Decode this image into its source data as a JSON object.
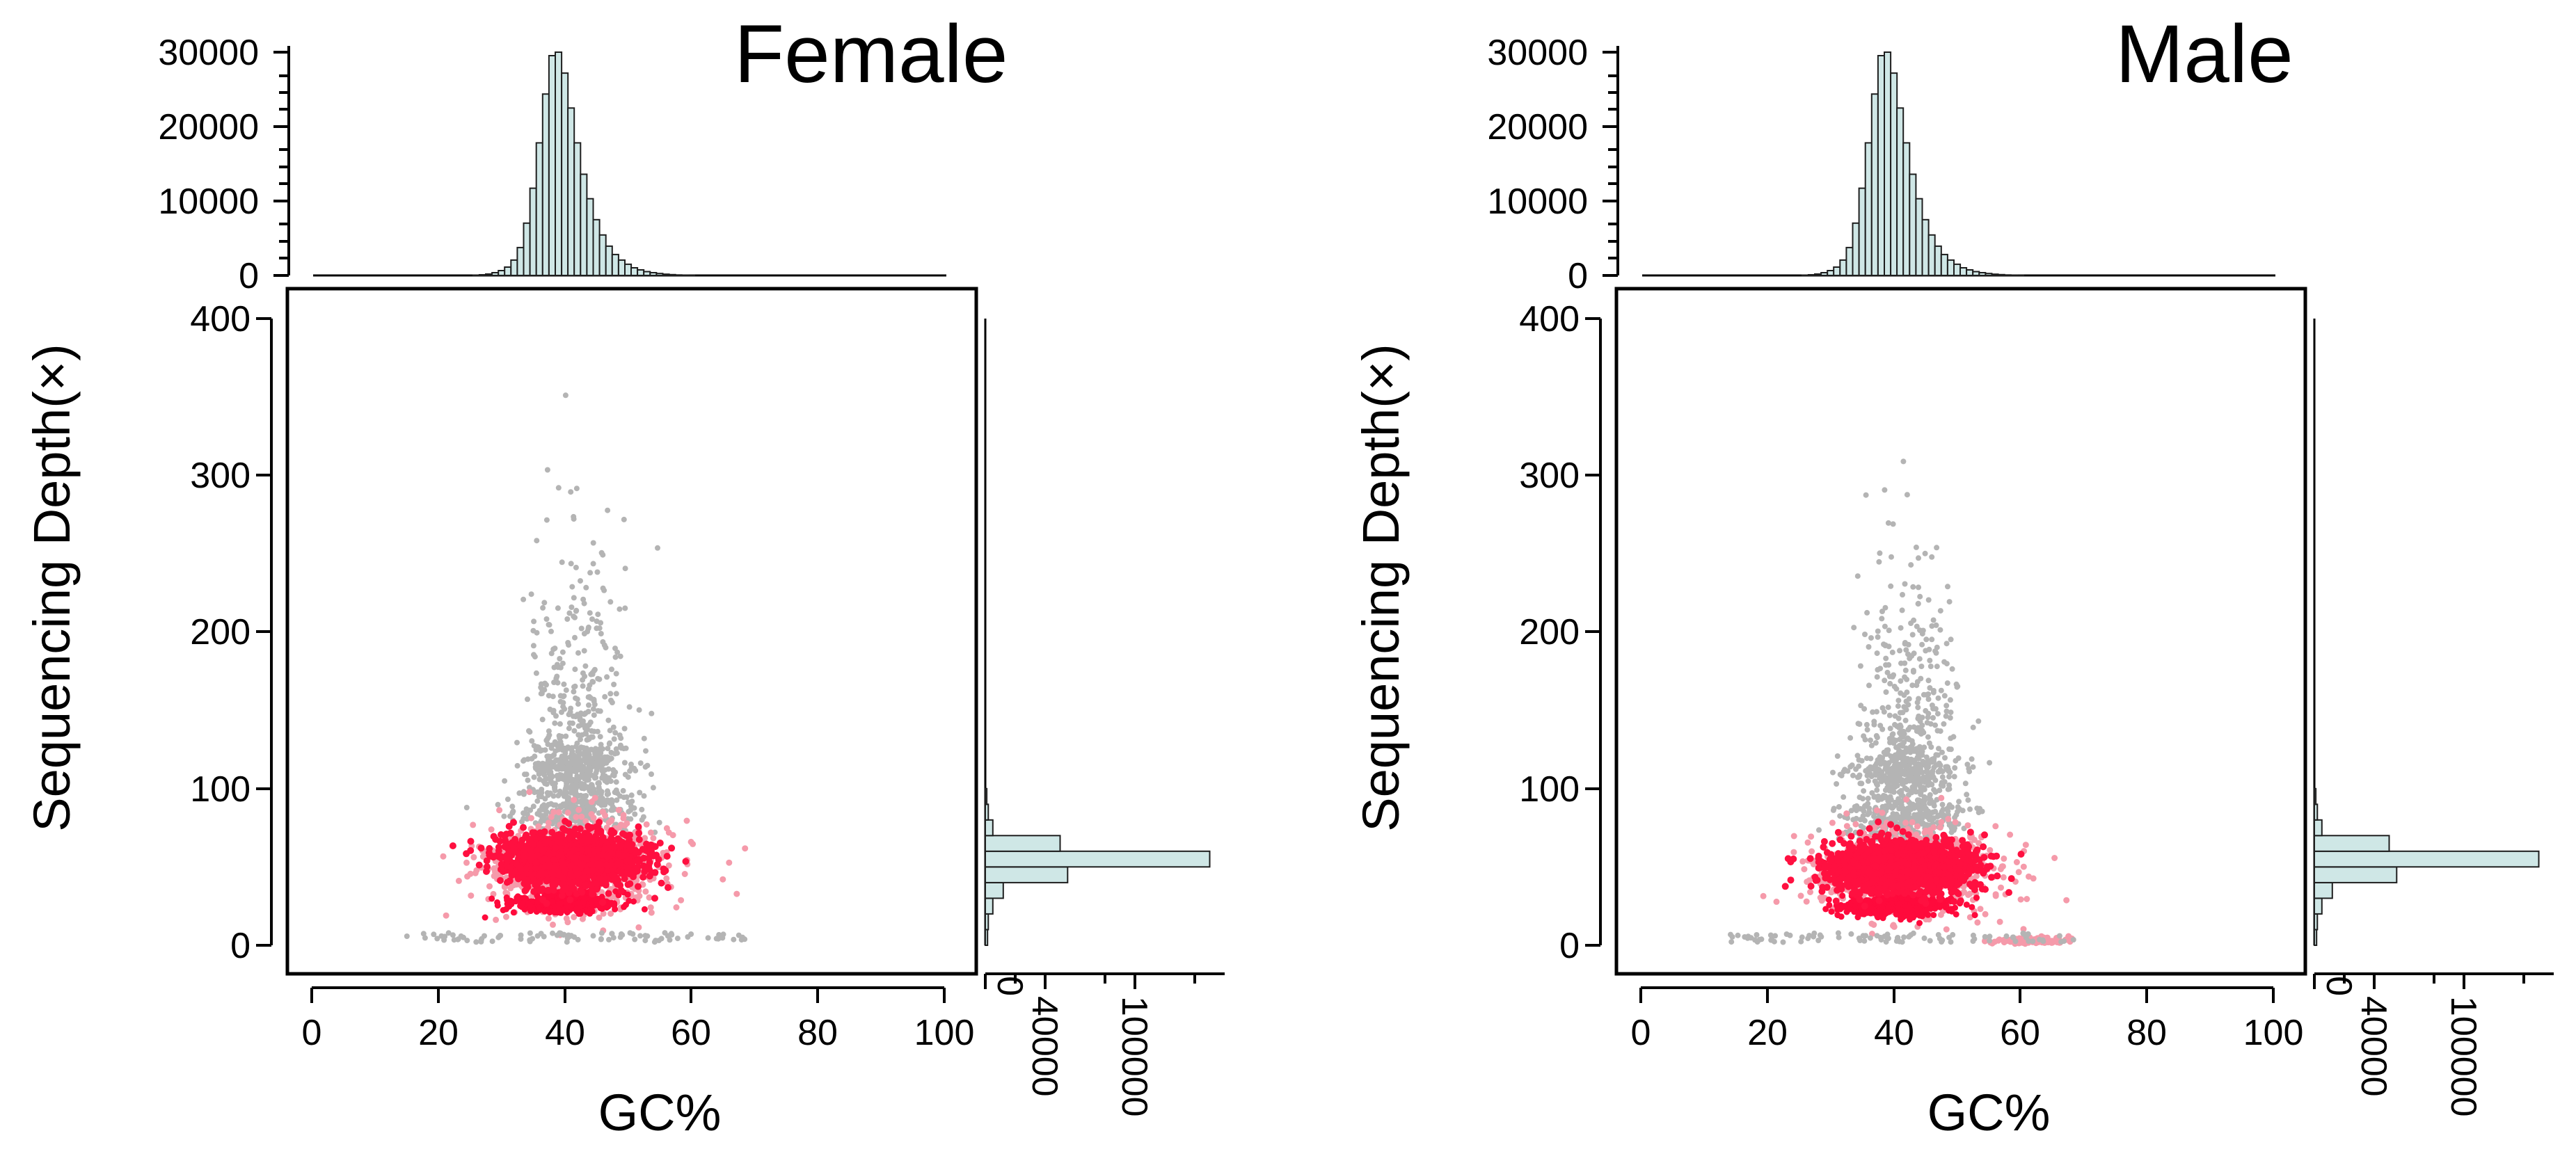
{
  "colors": {
    "histogram_fill": "#cfe7e6",
    "histogram_stroke": "#1e1e1e",
    "point_sparse": "#b4b4b4",
    "point_mid": "#f59aaa",
    "point_dense": "#ff0a3c",
    "point_core": "#ff1040"
  },
  "chart_data": [
    {
      "type": "scatter",
      "title": "Female",
      "xlabel": "GC%",
      "ylabel": "Sequencing   Depth(×)",
      "xlim": [
        0,
        100
      ],
      "ylim": [
        0,
        400
      ],
      "x_ticks": [
        "0",
        "20",
        "40",
        "60",
        "80",
        "100"
      ],
      "y_ticks": [
        "0",
        "100",
        "200",
        "300",
        "400"
      ],
      "grid": false,
      "density_clusters": [
        {
          "gc": 41,
          "depth": 55,
          "sd_gc": 5.5,
          "sd_depth": 8,
          "level": "core"
        },
        {
          "gc": 40,
          "depth": 27,
          "sd_gc": 4,
          "sd_depth": 3,
          "level": "dense"
        },
        {
          "gc": 42,
          "depth": 52,
          "sd_gc": 7,
          "sd_depth": 14,
          "level": "mid"
        },
        {
          "gc": 42,
          "depth": 85,
          "sd_gc": 5,
          "sd_depth": 8,
          "level": "sparse"
        },
        {
          "gc": 42,
          "depth": 115,
          "sd_gc": 4,
          "sd_depth": 8,
          "level": "sparse"
        },
        {
          "gc": 42,
          "depth": 200,
          "sd_gc": 4,
          "sd_depth": 80,
          "level": "sparse"
        }
      ],
      "top_histogram": {
        "x_centers": [
          26,
          27,
          28,
          29,
          30,
          31,
          32,
          33,
          34,
          35,
          36,
          37,
          38,
          39,
          40,
          41,
          42,
          43,
          44,
          45,
          46,
          47,
          48,
          49,
          50,
          51,
          52,
          53,
          54,
          55,
          56,
          57,
          58,
          59,
          60
        ],
        "counts": [
          50,
          100,
          200,
          400,
          700,
          1200,
          2200,
          4000,
          7500,
          12500,
          19000,
          26000,
          31500,
          32000,
          29000,
          24000,
          19000,
          14500,
          11000,
          8000,
          5800,
          4200,
          3000,
          2200,
          1600,
          1100,
          800,
          550,
          400,
          280,
          180,
          120,
          70,
          40,
          20
        ],
        "ylim": [
          0,
          32000
        ],
        "y_ticks": [
          "0",
          "10000",
          "20000",
          "30000"
        ]
      },
      "right_histogram": {
        "depth_centers": [
          5,
          15,
          25,
          35,
          45,
          55,
          65,
          75,
          85,
          95
        ],
        "counts": [
          1500,
          2000,
          5000,
          12000,
          55000,
          150000,
          50000,
          5000,
          2000,
          1000
        ],
        "xlim": [
          0,
          160000
        ],
        "x_ticks": [
          "0",
          "40000",
          "100000"
        ]
      }
    },
    {
      "type": "scatter",
      "title": "Male",
      "xlabel": "GC%",
      "ylabel": "Sequencing   Depth(×)",
      "xlim": [
        0,
        100
      ],
      "ylim": [
        0,
        400
      ],
      "x_ticks": [
        "0",
        "20",
        "40",
        "60",
        "80",
        "100"
      ],
      "y_ticks": [
        "0",
        "100",
        "200",
        "300",
        "400"
      ],
      "grid": false,
      "density_clusters": [
        {
          "gc": 41,
          "depth": 50,
          "sd_gc": 5.5,
          "sd_depth": 8,
          "level": "core"
        },
        {
          "gc": 40,
          "depth": 25,
          "sd_gc": 4,
          "sd_depth": 3,
          "level": "dense"
        },
        {
          "gc": 42,
          "depth": 48,
          "sd_gc": 7,
          "sd_depth": 14,
          "level": "mid"
        },
        {
          "gc": 42,
          "depth": 80,
          "sd_gc": 5,
          "sd_depth": 8,
          "level": "sparse"
        },
        {
          "gc": 42,
          "depth": 110,
          "sd_gc": 4,
          "sd_depth": 8,
          "level": "sparse"
        },
        {
          "gc": 42,
          "depth": 200,
          "sd_gc": 4,
          "sd_depth": 80,
          "level": "sparse"
        },
        {
          "gc": 62,
          "depth": 3,
          "sd_gc": 3,
          "sd_depth": 1,
          "level": "mid"
        }
      ],
      "top_histogram": {
        "x_centers": [
          26,
          27,
          28,
          29,
          30,
          31,
          32,
          33,
          34,
          35,
          36,
          37,
          38,
          39,
          40,
          41,
          42,
          43,
          44,
          45,
          46,
          47,
          48,
          49,
          50,
          51,
          52,
          53,
          54,
          55,
          56,
          57,
          58,
          59,
          60
        ],
        "counts": [
          50,
          100,
          200,
          400,
          700,
          1200,
          2200,
          4000,
          7500,
          12500,
          19000,
          26000,
          31500,
          32000,
          29000,
          24000,
          19000,
          14500,
          11000,
          8000,
          5800,
          4200,
          3000,
          2200,
          1600,
          1100,
          800,
          550,
          400,
          280,
          180,
          120,
          70,
          40,
          20
        ],
        "ylim": [
          0,
          32000
        ],
        "y_ticks": [
          "0",
          "10000",
          "20000",
          "30000"
        ]
      },
      "right_histogram": {
        "depth_centers": [
          5,
          15,
          25,
          35,
          45,
          55,
          65,
          75,
          85,
          95
        ],
        "counts": [
          1500,
          2000,
          5000,
          12000,
          55000,
          150000,
          50000,
          5000,
          2000,
          1000
        ],
        "xlim": [
          0,
          160000
        ],
        "x_ticks": [
          "0",
          "40000",
          "100000"
        ]
      }
    }
  ]
}
